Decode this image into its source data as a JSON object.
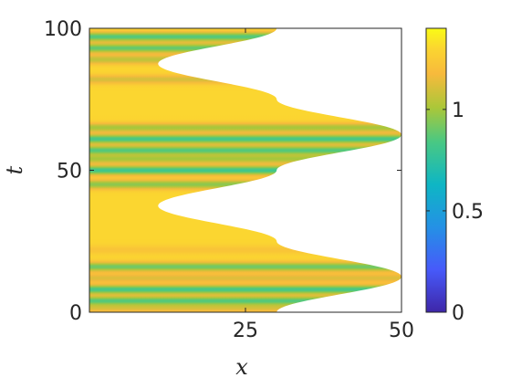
{
  "chart_data": {
    "type": "heatmap",
    "title": "",
    "xlabel": "x",
    "ylabel": "t",
    "xlim": [
      0,
      50
    ],
    "ylim": [
      0,
      100
    ],
    "xticks": [
      {
        "value": 25,
        "label": "25"
      },
      {
        "value": 50,
        "label": "50"
      }
    ],
    "yticks": [
      {
        "value": 0,
        "label": "0"
      },
      {
        "value": 50,
        "label": "50"
      },
      {
        "value": 100,
        "label": "100"
      }
    ],
    "colorbar": {
      "colormap": "parula",
      "range": [
        0,
        1.4
      ],
      "ticks": [
        {
          "value": 0,
          "label": "0"
        },
        {
          "value": 0.5,
          "label": "0.5"
        },
        {
          "value": 1,
          "label": "1"
        }
      ]
    },
    "domain_boundary": {
      "description": "right edge of the colored region, x as a function of t",
      "t": [
        0,
        12.5,
        25,
        37.5,
        50,
        62.5,
        75,
        87.5,
        100
      ],
      "x": [
        30,
        50,
        30,
        11,
        30,
        50,
        30,
        11,
        30
      ]
    },
    "bands": [
      {
        "t": 1.5,
        "value": 1.12
      },
      {
        "t": 4,
        "value": 0.85
      },
      {
        "t": 8,
        "value": 0.82
      },
      {
        "t": 12,
        "value": 1.12
      },
      {
        "t": 16,
        "value": 0.9
      },
      {
        "t": 22,
        "value": 1.22
      },
      {
        "t": 45,
        "value": 0.95
      },
      {
        "t": 50,
        "value": 0.8
      },
      {
        "t": 54,
        "value": 1.0
      },
      {
        "t": 57,
        "value": 0.85
      },
      {
        "t": 61,
        "value": 0.82
      },
      {
        "t": 65,
        "value": 1.0
      },
      {
        "t": 82,
        "value": 1.1
      },
      {
        "t": 89,
        "value": 1.05
      },
      {
        "t": 93,
        "value": 0.88
      },
      {
        "t": 97,
        "value": 0.85
      }
    ],
    "base_value": 1.3,
    "colors": {
      "axis": "#262626",
      "background": "#ffffff"
    }
  }
}
